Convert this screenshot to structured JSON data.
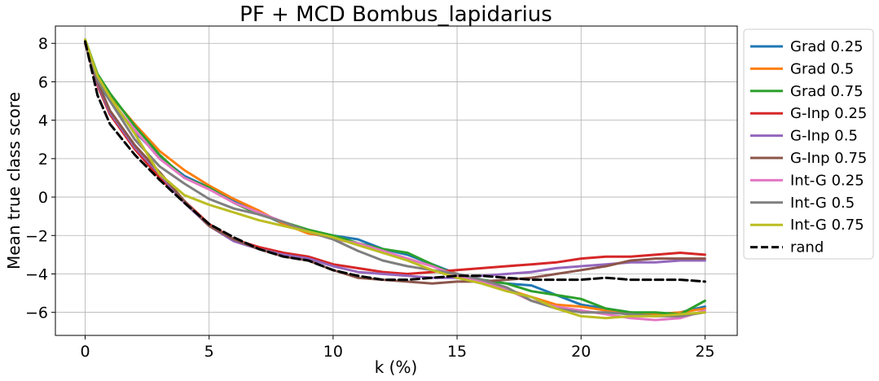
{
  "chart_data": {
    "type": "line",
    "title": "PF + MCD Bombus_lapidarius",
    "xlabel": "k (%)",
    "ylabel": "Mean true class score",
    "xlim": [
      -1.2,
      26.3
    ],
    "ylim": [
      -7.2,
      8.9
    ],
    "xticks": [
      0,
      5,
      10,
      15,
      20,
      25
    ],
    "yticks": [
      -6,
      -4,
      -2,
      0,
      2,
      4,
      6,
      8
    ],
    "grid": true,
    "legend_position": "outside-right",
    "x": [
      0,
      0.5,
      1,
      2,
      3,
      4,
      5,
      6,
      7,
      8,
      9,
      10,
      11,
      12,
      13,
      14,
      15,
      16,
      17,
      18,
      19,
      20,
      21,
      22,
      23,
      24,
      25
    ],
    "series": [
      {
        "name": "Grad 0.25",
        "color": "#1f77b4",
        "dash": "solid",
        "values": [
          8.1,
          6.0,
          5.0,
          3.4,
          2.1,
          1.1,
          0.5,
          -0.2,
          -0.8,
          -1.4,
          -1.8,
          -2.0,
          -2.2,
          -2.7,
          -3.0,
          -3.5,
          -4.0,
          -4.3,
          -4.5,
          -4.6,
          -5.1,
          -5.6,
          -5.8,
          -6.0,
          -6.1,
          -6.0,
          -5.7
        ]
      },
      {
        "name": "Grad 0.5",
        "color": "#ff7f0e",
        "dash": "solid",
        "values": [
          8.1,
          6.3,
          5.3,
          3.8,
          2.4,
          1.4,
          0.6,
          -0.1,
          -0.7,
          -1.4,
          -1.9,
          -2.1,
          -2.4,
          -2.9,
          -3.2,
          -3.6,
          -4.0,
          -4.4,
          -4.8,
          -5.2,
          -5.6,
          -5.7,
          -5.9,
          -6.0,
          -6.1,
          -6.0,
          -5.8
        ]
      },
      {
        "name": "Grad 0.75",
        "color": "#2ca02c",
        "dash": "solid",
        "values": [
          8.2,
          6.4,
          5.4,
          3.7,
          2.2,
          1.0,
          0.5,
          -0.3,
          -0.9,
          -1.3,
          -1.7,
          -2.0,
          -2.4,
          -2.7,
          -2.9,
          -3.5,
          -4.1,
          -4.3,
          -4.5,
          -4.9,
          -5.1,
          -5.3,
          -5.8,
          -6.0,
          -6.0,
          -6.1,
          -5.4
        ]
      },
      {
        "name": "G-Inp 0.25",
        "color": "#d62728",
        "dash": "solid",
        "values": [
          8.0,
          5.8,
          4.3,
          2.5,
          1.0,
          -0.2,
          -1.4,
          -2.2,
          -2.6,
          -2.9,
          -3.1,
          -3.5,
          -3.7,
          -3.9,
          -4.0,
          -3.9,
          -3.8,
          -3.7,
          -3.6,
          -3.5,
          -3.4,
          -3.2,
          -3.1,
          -3.1,
          -3.0,
          -2.9,
          -3.0
        ]
      },
      {
        "name": "G-Inp 0.5",
        "color": "#9467bd",
        "dash": "solid",
        "values": [
          8.0,
          5.9,
          4.4,
          2.6,
          1.2,
          -0.3,
          -1.5,
          -2.3,
          -2.7,
          -3.0,
          -3.2,
          -3.6,
          -3.9,
          -4.0,
          -4.1,
          -4.2,
          -4.2,
          -4.1,
          -4.0,
          -3.9,
          -3.7,
          -3.6,
          -3.5,
          -3.4,
          -3.4,
          -3.3,
          -3.3
        ]
      },
      {
        "name": "G-Inp 0.75",
        "color": "#8c564b",
        "dash": "solid",
        "values": [
          8.0,
          6.0,
          4.5,
          2.7,
          1.3,
          -0.2,
          -1.5,
          -2.2,
          -2.7,
          -3.1,
          -3.3,
          -3.8,
          -4.2,
          -4.3,
          -4.4,
          -4.5,
          -4.4,
          -4.4,
          -4.3,
          -4.2,
          -4.0,
          -3.8,
          -3.6,
          -3.3,
          -3.2,
          -3.2,
          -3.2
        ]
      },
      {
        "name": "Int-G 0.25",
        "color": "#e377c2",
        "dash": "solid",
        "values": [
          8.1,
          6.2,
          5.1,
          3.5,
          2.0,
          1.0,
          0.4,
          -0.3,
          -0.8,
          -1.3,
          -1.8,
          -2.2,
          -2.4,
          -2.8,
          -3.2,
          -3.6,
          -4.1,
          -4.4,
          -4.8,
          -5.4,
          -5.7,
          -5.9,
          -6.1,
          -6.3,
          -6.4,
          -6.3,
          -5.9
        ]
      },
      {
        "name": "Int-G 0.5",
        "color": "#7f7f7f",
        "dash": "solid",
        "values": [
          8.1,
          6.1,
          5.0,
          3.0,
          1.6,
          0.7,
          -0.1,
          -0.6,
          -0.9,
          -1.3,
          -1.8,
          -2.2,
          -2.8,
          -3.3,
          -3.6,
          -3.8,
          -4.0,
          -4.3,
          -4.7,
          -5.4,
          -5.8,
          -6.0,
          -6.0,
          -6.1,
          -6.2,
          -6.2,
          -6.0
        ]
      },
      {
        "name": "Int-G 0.75",
        "color": "#bcbd22",
        "dash": "solid",
        "values": [
          8.2,
          6.3,
          5.2,
          3.3,
          1.2,
          0.1,
          -0.4,
          -0.8,
          -1.2,
          -1.5,
          -1.8,
          -2.1,
          -2.5,
          -2.9,
          -3.3,
          -3.8,
          -4.2,
          -4.5,
          -4.9,
          -5.2,
          -5.8,
          -6.2,
          -6.3,
          -6.2,
          -6.2,
          -6.1,
          -6.0
        ]
      },
      {
        "name": "rand",
        "color": "#000000",
        "dash": "dashed",
        "values": [
          8.1,
          5.3,
          3.8,
          2.2,
          0.9,
          -0.3,
          -1.4,
          -2.1,
          -2.7,
          -3.1,
          -3.3,
          -3.8,
          -4.1,
          -4.3,
          -4.3,
          -4.2,
          -4.1,
          -4.1,
          -4.2,
          -4.3,
          -4.3,
          -4.3,
          -4.2,
          -4.3,
          -4.3,
          -4.3,
          -4.4
        ]
      }
    ]
  }
}
